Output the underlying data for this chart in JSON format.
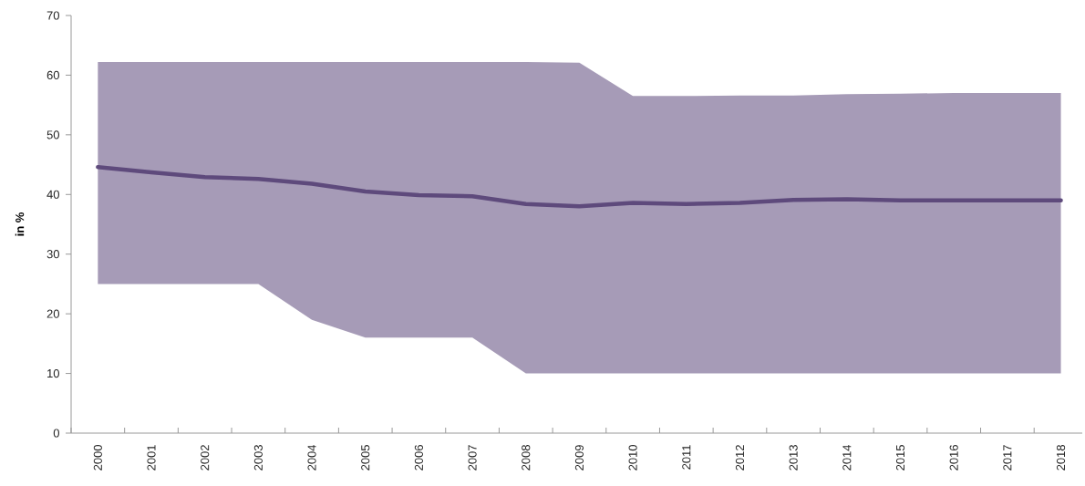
{
  "chart_data": {
    "type": "line",
    "ylabel": "in %",
    "categories": [
      "2000",
      "2001",
      "2002",
      "2003",
      "2004",
      "2005",
      "2006",
      "2007",
      "2008",
      "2009",
      "2010",
      "2011",
      "2012",
      "2013",
      "2014",
      "2015",
      "2016",
      "2017",
      "2018"
    ],
    "series": [
      {
        "color": "#5e4a7c",
        "values": [
          44.6,
          43.7,
          42.9,
          42.6,
          41.8,
          40.5,
          39.9,
          39.7,
          38.4,
          38.0,
          38.6,
          38.4,
          38.6,
          39.1,
          39.2,
          39.0,
          39.0,
          39.0,
          39.0
        ],
        "lower": [
          25,
          25,
          25,
          25,
          19,
          16,
          16,
          16,
          10,
          10,
          10,
          10,
          10,
          10,
          10,
          10,
          10,
          10,
          10
        ],
        "upper": [
          62.2,
          62.2,
          62.2,
          62.2,
          62.2,
          62.2,
          62.2,
          62.2,
          62.2,
          62.1,
          56.5,
          56.5,
          56.6,
          56.6,
          56.8,
          56.9,
          57.0,
          57.0,
          57.0
        ]
      }
    ],
    "ylim": [
      0,
      70
    ],
    "yticks": [
      0,
      10,
      20,
      30,
      40,
      50,
      60,
      70
    ],
    "grid": false
  }
}
